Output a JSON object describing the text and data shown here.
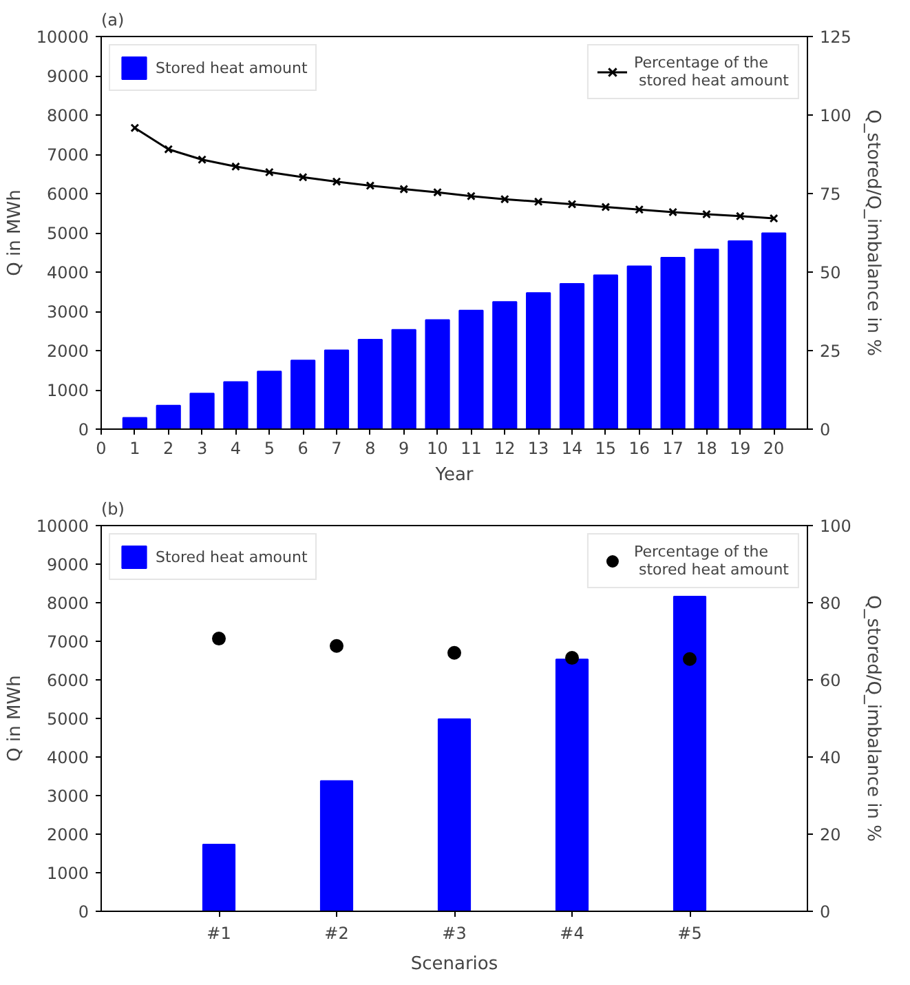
{
  "chart_data": [
    {
      "type": "bar",
      "title": "(a)",
      "xlabel": "Year",
      "ylabel": "Q in MWh",
      "y2label": "Q_stored/Q_imbalance in %",
      "x": [
        1,
        2,
        3,
        4,
        5,
        6,
        7,
        8,
        9,
        10,
        11,
        12,
        13,
        14,
        15,
        16,
        17,
        18,
        19,
        20
      ],
      "xlim": [
        0,
        21
      ],
      "xticks": [
        0,
        1,
        2,
        3,
        4,
        5,
        6,
        7,
        8,
        9,
        10,
        11,
        12,
        13,
        14,
        15,
        16,
        17,
        18,
        19,
        20
      ],
      "ylim": [
        0,
        10000
      ],
      "yticks": [
        0,
        1000,
        2000,
        3000,
        4000,
        5000,
        6000,
        7000,
        8000,
        9000,
        10000
      ],
      "y2lim": [
        0,
        125
      ],
      "y2ticks": [
        0,
        25,
        50,
        75,
        100,
        125
      ],
      "grid": false,
      "legend": "top",
      "series": [
        {
          "name": "Stored heat amount",
          "color": "#0000ff",
          "values": [
            290,
            600,
            910,
            1200,
            1470,
            1750,
            2010,
            2280,
            2530,
            2780,
            3020,
            3240,
            3470,
            3700,
            3920,
            4150,
            4370,
            4580,
            4790,
            4990
          ]
        },
        {
          "name": "Percentage of the\n stored heat amount",
          "type": "line",
          "axis": "y2",
          "color": "#000000",
          "marker": "cross",
          "line_style": "solid",
          "values": [
            95.9,
            89.1,
            85.8,
            83.6,
            81.8,
            80.2,
            78.8,
            77.5,
            76.4,
            75.4,
            74.2,
            73.2,
            72.4,
            71.6,
            70.7,
            69.9,
            69.1,
            68.4,
            67.8,
            67.1
          ]
        }
      ]
    },
    {
      "type": "bar",
      "title": "(b)",
      "xlabel": "Scenarios",
      "ylabel": "Q in MWh",
      "y2label": "Q_stored/Q_imbalance in %",
      "categories": [
        "#1",
        "#2",
        "#3",
        "#4",
        "#5"
      ],
      "ylim": [
        0,
        10000
      ],
      "yticks": [
        0,
        1000,
        2000,
        3000,
        4000,
        5000,
        6000,
        7000,
        8000,
        9000,
        10000
      ],
      "y2lim": [
        0,
        100
      ],
      "y2ticks": [
        0,
        20,
        40,
        60,
        80,
        100
      ],
      "grid": false,
      "legend": "top",
      "series": [
        {
          "name": "Stored heat amount",
          "color": "#0000ff",
          "values": [
            1730,
            3380,
            4980,
            6530,
            8160
          ]
        },
        {
          "name": "Percentage of the\n stored heat amount",
          "type": "scatter",
          "axis": "y2",
          "color": "#000000",
          "marker": "circle",
          "values": [
            70.7,
            68.8,
            67.0,
            65.7,
            65.4
          ]
        }
      ]
    }
  ]
}
